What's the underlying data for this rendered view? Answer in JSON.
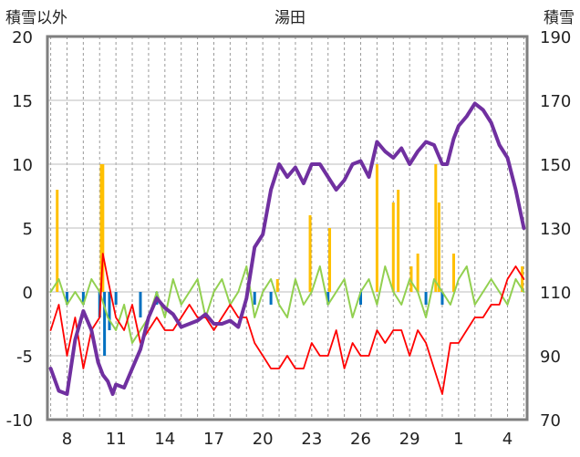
{
  "chart_data": {
    "type": "line",
    "title": "湯田",
    "left_axis_label": "積雪以外",
    "right_axis_label": "積雪",
    "ylim_left": [
      -10,
      20
    ],
    "ylim_right": [
      70,
      190
    ],
    "y_ticks_left": [
      "20",
      "15",
      "10",
      "5",
      "0",
      "-5",
      "-10"
    ],
    "y_ticks_right": [
      "190",
      "170",
      "150",
      "130",
      "110",
      "90",
      "70"
    ],
    "x_ticks": [
      "8",
      "11",
      "14",
      "17",
      "20",
      "23",
      "26",
      "29",
      "1",
      "4"
    ],
    "grid": true,
    "legend": "none",
    "x_range_days": [
      6.8,
      36.2
    ],
    "series": [
      {
        "key": "snow_depth",
        "axis": "right",
        "style": "line",
        "color": "#7030A0",
        "x": [
          7.0,
          7.5,
          8.0,
          8.5,
          9.0,
          9.5,
          9.9,
          10.2,
          10.5,
          10.8,
          11.0,
          11.5,
          12.0,
          12.5,
          13.0,
          13.5,
          14.0,
          14.5,
          15.0,
          15.5,
          16.0,
          16.5,
          17.0,
          17.5,
          18.0,
          18.5,
          19.0,
          19.5,
          20.0,
          20.5,
          21.0,
          21.5,
          22.0,
          22.5,
          23.0,
          23.5,
          24.0,
          24.5,
          25.0,
          25.5,
          26.0,
          26.5,
          27.0,
          27.5,
          28.0,
          28.5,
          29.0,
          29.5,
          30.0,
          30.5,
          31.0,
          31.3,
          31.7,
          32.0,
          32.5,
          33.0,
          33.5,
          34.0,
          34.5,
          35.0,
          35.5,
          36.0
        ],
        "values": [
          86,
          79,
          78,
          95,
          104,
          98,
          88,
          84,
          82,
          78,
          81,
          80,
          86,
          92,
          102,
          108,
          105,
          103,
          99,
          100,
          101,
          103,
          100,
          100,
          101,
          99,
          108,
          124,
          128,
          142,
          150,
          146,
          149,
          144,
          150,
          150,
          146,
          142,
          145,
          150,
          151,
          146,
          157,
          154,
          152,
          155,
          150,
          154,
          157,
          156,
          150,
          150,
          158,
          162,
          165,
          169,
          167,
          163,
          156,
          152,
          142,
          130
        ]
      },
      {
        "key": "temp_min",
        "axis": "left",
        "style": "line",
        "color": "#FF0000",
        "x": [
          7.0,
          7.5,
          8.0,
          8.5,
          9.0,
          9.5,
          10.0,
          10.2,
          10.5,
          11.0,
          11.5,
          12.0,
          12.5,
          13.0,
          13.5,
          14.0,
          14.5,
          15.0,
          15.5,
          16.0,
          16.5,
          17.0,
          17.5,
          18.0,
          18.5,
          19.0,
          19.5,
          20.0,
          20.5,
          21.0,
          21.5,
          22.0,
          22.5,
          23.0,
          23.5,
          24.0,
          24.5,
          25.0,
          25.5,
          26.0,
          26.5,
          27.0,
          27.5,
          28.0,
          28.5,
          29.0,
          29.5,
          30.0,
          30.5,
          31.0,
          31.5,
          32.0,
          32.5,
          33.0,
          33.5,
          34.0,
          34.5,
          35.0,
          35.5,
          36.0
        ],
        "values": [
          -3,
          -1,
          -5,
          -2,
          -6,
          -3,
          -2,
          3,
          1,
          -2,
          -3,
          -1,
          -4,
          -3,
          -2,
          -3,
          -3,
          -2,
          -1,
          -2,
          -2,
          -3,
          -2,
          -1,
          -2,
          -2,
          -4,
          -5,
          -6,
          -6,
          -5,
          -6,
          -6,
          -4,
          -5,
          -5,
          -3,
          -6,
          -4,
          -5,
          -5,
          -3,
          -4,
          -3,
          -3,
          -5,
          -3,
          -4,
          -6,
          -8,
          -4,
          -4,
          -3,
          -2,
          -2,
          -1,
          -1,
          1,
          2,
          1
        ]
      },
      {
        "key": "daily_diff",
        "axis": "left",
        "style": "line",
        "color": "#92D050",
        "x": [
          7.0,
          7.5,
          8.0,
          8.5,
          9.0,
          9.5,
          10.0,
          10.5,
          11.0,
          11.5,
          12.0,
          12.5,
          13.0,
          13.5,
          14.0,
          14.5,
          15.0,
          15.5,
          16.0,
          16.5,
          17.0,
          17.5,
          18.0,
          18.5,
          19.0,
          19.5,
          20.0,
          20.5,
          21.0,
          21.5,
          22.0,
          22.5,
          23.0,
          23.5,
          24.0,
          24.5,
          25.0,
          25.5,
          26.0,
          26.5,
          27.0,
          27.5,
          28.0,
          28.5,
          29.0,
          29.5,
          30.0,
          30.5,
          31.0,
          31.5,
          32.0,
          32.5,
          33.0,
          33.5,
          34.0,
          34.5,
          35.0,
          35.5,
          36.0
        ],
        "values": [
          0,
          1,
          -1,
          0,
          -1,
          1,
          0,
          -2,
          -3,
          -1,
          -4,
          -3,
          -2,
          0,
          -2,
          1,
          -1,
          0,
          1,
          -2,
          0,
          1,
          -1,
          0,
          2,
          -2,
          0,
          1,
          -1,
          -2,
          1,
          -1,
          0,
          2,
          -1,
          0,
          1,
          -2,
          0,
          1,
          -1,
          2,
          0,
          -1,
          1,
          0,
          -2,
          1,
          0,
          -1,
          1,
          2,
          -1,
          0,
          1,
          0,
          -1,
          1,
          0
        ]
      },
      {
        "key": "snowfall",
        "axis": "left",
        "style": "bar",
        "color": "#FFC000",
        "x": [
          7.4,
          10.1,
          10.2,
          20.9,
          22.9,
          24.1,
          27.0,
          28.0,
          28.3,
          29.1,
          29.5,
          30.6,
          30.8,
          31.7,
          35.9
        ],
        "values": [
          8,
          10,
          10,
          1,
          6,
          5,
          10,
          7,
          8,
          2,
          3,
          10,
          7,
          3,
          2
        ]
      },
      {
        "key": "snow_change",
        "axis": "left",
        "style": "bar",
        "color": "#0070C0",
        "x": [
          8.0,
          9.0,
          10.0,
          10.3,
          10.6,
          11.0,
          12.5,
          13.5,
          19.5,
          20.5,
          24.0,
          26.0,
          30.0,
          31.0
        ],
        "values": [
          -1,
          -1,
          -2,
          -5,
          -3,
          -1,
          -2,
          -1,
          -1,
          -1,
          -1,
          -1,
          -1,
          -1
        ]
      }
    ]
  }
}
